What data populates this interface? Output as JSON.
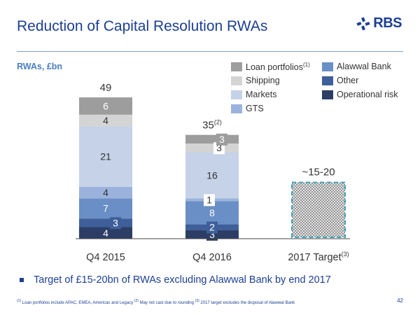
{
  "page": {
    "title": "Reduction of Capital Resolution RWAs",
    "logo_text": "RBS",
    "units_label": "RWAs, £bn",
    "bullet": "Target of £15-20bn of RWAs excluding Alawwal Bank by end 2017",
    "footnotes": [
      {
        "mark": "(1)",
        "text": " Loan portfolios include APAC, EMEA, Americas and Legacy "
      },
      {
        "mark": "(2)",
        "text": " May not cast due to rounding "
      },
      {
        "mark": "(3)",
        "text": " 2017 target excludes the disposal of Alawwal Bank"
      }
    ],
    "page_number": "42"
  },
  "chart_data": {
    "type": "bar",
    "stacked": true,
    "categories": [
      "Q4 2015",
      "Q4 2016",
      "2017 Target"
    ],
    "category_superscripts": [
      "",
      "",
      "(3)"
    ],
    "totals": [
      "49",
      "35",
      null
    ],
    "total_superscripts": [
      "",
      "(2)",
      ""
    ],
    "series": [
      {
        "name": "Operational risk",
        "color": "#2c3e66",
        "values": [
          4,
          3,
          0
        ]
      },
      {
        "name": "Other",
        "color": "#3e5f99",
        "values": [
          3,
          2,
          0
        ]
      },
      {
        "name": "Alawwal Bank",
        "color": "#6a8fc6",
        "values": [
          7,
          8,
          0
        ]
      },
      {
        "name": "GTS",
        "color": "#9bb3dc",
        "values": [
          4,
          1,
          0
        ]
      },
      {
        "name": "Markets",
        "color": "#c5d2e8",
        "values": [
          21,
          16,
          0
        ]
      },
      {
        "name": "Shipping",
        "color": "#d4d4d4",
        "values": [
          4,
          3,
          0
        ]
      },
      {
        "name": "Loan portfolios",
        "name_superscript": "(1)",
        "color": "#9d9d9d",
        "values": [
          6,
          3,
          0
        ]
      }
    ],
    "target": {
      "category": "2017 Target",
      "range": [
        15,
        20
      ],
      "label": "~15-20",
      "style": "hatched",
      "border_color": "#3aa3b8"
    },
    "legend": {
      "placement": "top-right",
      "order": [
        "Loan portfolios",
        "Alawwal Bank",
        "Shipping",
        "Other",
        "Markets",
        "Operational risk",
        "GTS"
      ]
    },
    "ylim": [
      0,
      49
    ],
    "grid": false
  }
}
